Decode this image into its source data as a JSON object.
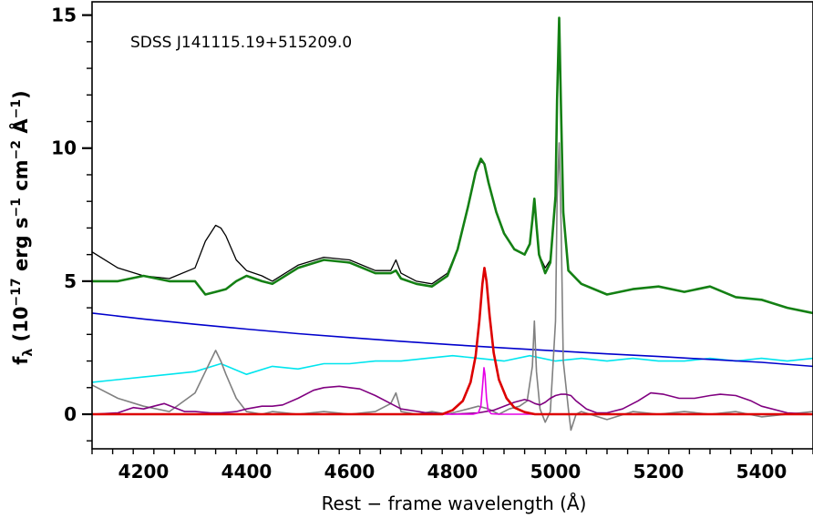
{
  "chart_data": {
    "type": "line",
    "annotation": "SDSS J141115.19+515209.0",
    "xlabel": "Rest − frame wavelength (Å)",
    "ylabel": {
      "prefix": "f",
      "sub": "λ",
      "body": " (10",
      "exp1": "−17",
      "mid1": " erg s",
      "exp2": "−1",
      "mid2": " cm",
      "exp3": "−2",
      "mid3": " Å",
      "exp4": "−1",
      "end": ")"
    },
    "xlim": [
      4100,
      5500
    ],
    "ylim": [
      -1.3,
      15.5
    ],
    "x_ticks": [
      4200,
      4400,
      4600,
      4800,
      5000,
      5200,
      5400
    ],
    "x_tick_labels": [
      "4200",
      "4400",
      "4600",
      "4800",
      "5000",
      "5200",
      "5400"
    ],
    "y_ticks": [
      0,
      5,
      10,
      15
    ],
    "y_tick_labels": [
      "0",
      "5",
      "10",
      "15"
    ],
    "grid": false,
    "legend": "none",
    "series": [
      {
        "color": "#000000",
        "x": [
          4100,
          4150,
          4200,
          4250,
          4300,
          4320,
          4340,
          4350,
          4360,
          4380,
          4400,
          4430,
          4450,
          4500,
          4550,
          4600,
          4650,
          4680,
          4690,
          4700,
          4730,
          4760,
          4790,
          4810,
          4830,
          4845,
          4855,
          4862,
          4870,
          4885,
          4900,
          4920,
          4940,
          4950,
          4955,
          4959,
          4963,
          4968,
          4980,
          4990,
          5000,
          5003,
          5007,
          5011,
          5015,
          5025,
          5050,
          5100,
          5150,
          5200,
          5250,
          5300,
          5350,
          5400,
          5450,
          5500
        ],
        "y": [
          6.1,
          5.5,
          5.2,
          5.1,
          5.5,
          6.5,
          7.1,
          7.0,
          6.7,
          5.8,
          5.4,
          5.2,
          5.0,
          5.6,
          5.9,
          5.8,
          5.4,
          5.4,
          5.8,
          5.3,
          5.0,
          4.9,
          5.3,
          6.2,
          7.8,
          9.1,
          9.5,
          9.4,
          8.7,
          7.6,
          6.8,
          6.2,
          6.0,
          6.4,
          7.3,
          8.1,
          7.1,
          6.0,
          5.5,
          5.8,
          8.0,
          11.5,
          14.8,
          11.0,
          7.6,
          5.4,
          4.9,
          4.5,
          4.7,
          4.8,
          4.6,
          4.8,
          4.4,
          4.3,
          4.0,
          3.8
        ]
      },
      {
        "color": "#148014",
        "x": [
          4100,
          4150,
          4200,
          4250,
          4300,
          4320,
          4340,
          4360,
          4380,
          4400,
          4430,
          4450,
          4500,
          4550,
          4600,
          4650,
          4680,
          4690,
          4700,
          4730,
          4760,
          4790,
          4810,
          4830,
          4845,
          4855,
          4862,
          4870,
          4885,
          4900,
          4920,
          4940,
          4950,
          4955,
          4959,
          4963,
          4968,
          4980,
          4990,
          5000,
          5003,
          5007,
          5011,
          5015,
          5025,
          5050,
          5100,
          5150,
          5200,
          5250,
          5300,
          5350,
          5400,
          5450,
          5500
        ],
        "y": [
          5.0,
          5.0,
          5.2,
          5.0,
          5.0,
          4.5,
          4.6,
          4.7,
          5.0,
          5.2,
          5.0,
          4.9,
          5.5,
          5.8,
          5.7,
          5.3,
          5.3,
          5.4,
          5.1,
          4.9,
          4.8,
          5.2,
          6.2,
          7.8,
          9.1,
          9.6,
          9.4,
          8.7,
          7.6,
          6.8,
          6.2,
          6.0,
          6.4,
          7.3,
          8.1,
          7.1,
          6.0,
          5.3,
          5.7,
          8.2,
          11.8,
          14.9,
          11.2,
          7.6,
          5.4,
          4.9,
          4.5,
          4.7,
          4.8,
          4.6,
          4.8,
          4.4,
          4.3,
          4.0,
          3.8
        ]
      },
      {
        "color": "#0000cc",
        "x": [
          4100,
          4200,
          4300,
          4400,
          4500,
          4600,
          4700,
          4800,
          4900,
          5000,
          5100,
          5200,
          5300,
          5400,
          5500
        ],
        "y": [
          3.8,
          3.58,
          3.38,
          3.2,
          3.03,
          2.88,
          2.74,
          2.61,
          2.49,
          2.38,
          2.27,
          2.17,
          2.06,
          1.95,
          1.8
        ]
      },
      {
        "color": "#00e5ee",
        "x": [
          4100,
          4150,
          4200,
          4250,
          4300,
          4350,
          4400,
          4450,
          4500,
          4550,
          4600,
          4650,
          4700,
          4750,
          4800,
          4850,
          4900,
          4950,
          5000,
          5050,
          5100,
          5150,
          5200,
          5250,
          5300,
          5350,
          5400,
          5450,
          5500
        ],
        "y": [
          1.2,
          1.3,
          1.4,
          1.5,
          1.6,
          1.9,
          1.5,
          1.8,
          1.7,
          1.9,
          1.9,
          2.0,
          2.0,
          2.1,
          2.2,
          2.1,
          2.0,
          2.2,
          2.0,
          2.1,
          2.0,
          2.1,
          2.0,
          2.0,
          2.1,
          2.0,
          2.1,
          2.0,
          2.1
        ]
      },
      {
        "color": "#808080",
        "x": [
          4100,
          4150,
          4200,
          4250,
          4300,
          4320,
          4340,
          4350,
          4360,
          4380,
          4400,
          4430,
          4450,
          4500,
          4550,
          4600,
          4650,
          4680,
          4690,
          4700,
          4730,
          4760,
          4790,
          4810,
          4830,
          4850,
          4870,
          4890,
          4910,
          4930,
          4945,
          4955,
          4959,
          4963,
          4970,
          4980,
          4990,
          5000,
          5003,
          5007,
          5011,
          5015,
          5025,
          5030,
          5040,
          5050,
          5100,
          5150,
          5200,
          5250,
          5300,
          5350,
          5400,
          5450,
          5500
        ],
        "y": [
          1.1,
          0.6,
          0.3,
          0.1,
          0.8,
          1.6,
          2.4,
          2.0,
          1.5,
          0.6,
          0.1,
          0.0,
          0.1,
          0.0,
          0.1,
          0.0,
          0.1,
          0.4,
          0.8,
          0.1,
          0.0,
          0.1,
          0.0,
          0.1,
          0.2,
          0.3,
          0.2,
          0.0,
          0.2,
          0.3,
          0.5,
          1.8,
          3.5,
          1.6,
          0.2,
          -0.3,
          0.1,
          3.5,
          8.0,
          10.2,
          7.0,
          2.0,
          0.2,
          -0.6,
          0.0,
          0.1,
          -0.2,
          0.1,
          0.0,
          0.1,
          0.0,
          0.1,
          -0.1,
          0.0,
          0.1
        ]
      },
      {
        "color": "#800080",
        "x": [
          4100,
          4150,
          4180,
          4200,
          4220,
          4240,
          4260,
          4280,
          4300,
          4330,
          4350,
          4380,
          4400,
          4430,
          4450,
          4470,
          4500,
          4530,
          4550,
          4580,
          4600,
          4620,
          4650,
          4680,
          4700,
          4750,
          4800,
          4850,
          4880,
          4900,
          4920,
          4940,
          4950,
          4960,
          4970,
          4980,
          4990,
          5000,
          5010,
          5020,
          5030,
          5040,
          5060,
          5080,
          5100,
          5130,
          5160,
          5185,
          5210,
          5240,
          5270,
          5300,
          5320,
          5350,
          5380,
          5400,
          5450,
          5500
        ],
        "y": [
          0.0,
          0.05,
          0.25,
          0.2,
          0.3,
          0.4,
          0.25,
          0.1,
          0.1,
          0.05,
          0.05,
          0.1,
          0.2,
          0.3,
          0.3,
          0.35,
          0.6,
          0.9,
          1.0,
          1.05,
          1.0,
          0.95,
          0.7,
          0.4,
          0.2,
          0.05,
          0.0,
          0.05,
          0.15,
          0.3,
          0.45,
          0.55,
          0.5,
          0.4,
          0.35,
          0.45,
          0.6,
          0.7,
          0.75,
          0.75,
          0.7,
          0.5,
          0.2,
          0.05,
          0.05,
          0.2,
          0.5,
          0.8,
          0.75,
          0.6,
          0.6,
          0.7,
          0.75,
          0.7,
          0.5,
          0.3,
          0.05,
          0.0
        ]
      },
      {
        "color": "#e600e6",
        "x": [
          4100,
          4840,
          4850,
          4855,
          4858,
          4861,
          4863,
          4866,
          4869,
          4875,
          4890,
          5500
        ],
        "y": [
          0,
          0,
          0.05,
          0.3,
          1.0,
          1.75,
          1.5,
          0.6,
          0.15,
          0.02,
          0,
          0
        ]
      },
      {
        "color": "#dd0000",
        "x": [
          4100,
          4780,
          4800,
          4820,
          4835,
          4845,
          4852,
          4858,
          4862,
          4866,
          4872,
          4880,
          4890,
          4905,
          4920,
          4940,
          4960,
          5500
        ],
        "y": [
          0,
          0,
          0.15,
          0.5,
          1.2,
          2.2,
          3.5,
          4.9,
          5.5,
          5.0,
          3.7,
          2.3,
          1.3,
          0.6,
          0.25,
          0.08,
          0,
          0
        ]
      }
    ]
  }
}
